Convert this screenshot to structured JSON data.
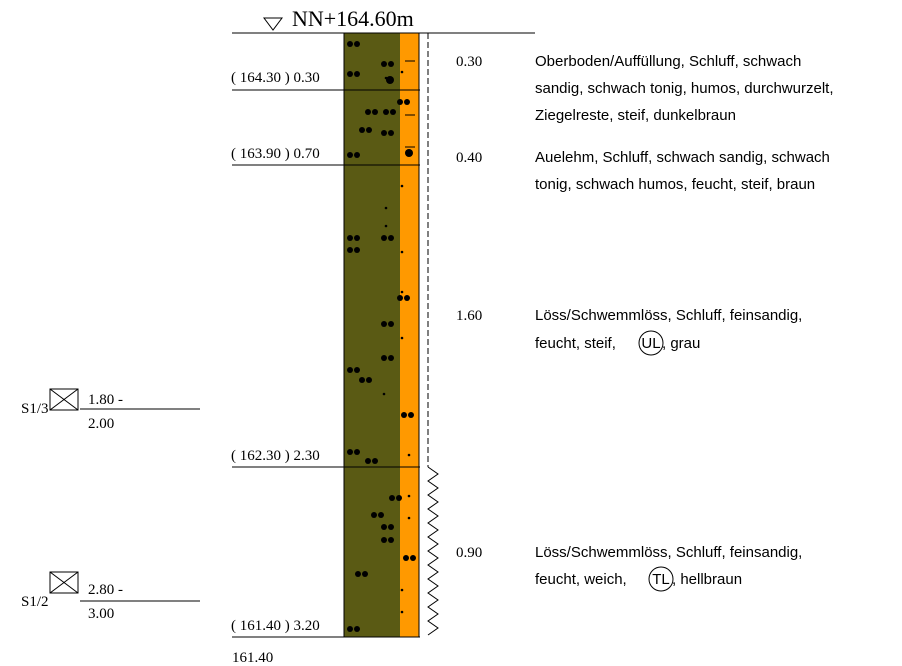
{
  "header": {
    "level_label": "NN+164.60m"
  },
  "column_colors": {
    "main": "#5a5a14",
    "side": "#ff9900",
    "symbol": "#000000"
  },
  "layers": [
    {
      "depth_label": "( 164.30 ) 0.30",
      "thickness": "0.30",
      "description": [
        "Oberboden/Auffüllung, Schluff, schwach",
        "sandig, schwach tonig, humos, durchwurzelt,",
        "Ziegelreste, steif, dunkelbraun"
      ]
    },
    {
      "depth_label": "( 163.90 ) 0.70",
      "thickness": "0.40",
      "description": [
        "Auelehm, Schluff, schwach sandig, schwach",
        "tonig, schwach humos, feucht, steif, braun"
      ]
    },
    {
      "depth_label": "( 162.30 ) 2.30",
      "thickness": "1.60",
      "description": [
        "Löss/Schwemmlöss, Schluff, feinsandig,"
      ],
      "description_last": "feucht, steif,",
      "soil_group": "UL",
      "description_tail": ", grau"
    },
    {
      "depth_label": "( 161.40 ) 3.20",
      "thickness": "0.90",
      "description": [
        "Löss/Schwemmlöss, Schluff, feinsandig,"
      ],
      "description_last": "feucht, weich,",
      "soil_group": "TL",
      "description_tail": ", hellbraun"
    }
  ],
  "bottom_label": "161.40",
  "samples": [
    {
      "id": "S1/3",
      "range_top": "1.80 -",
      "range_bottom": "2.00"
    },
    {
      "id": "S1/2",
      "range_top": "2.80 -",
      "range_bottom": "3.00"
    }
  ]
}
